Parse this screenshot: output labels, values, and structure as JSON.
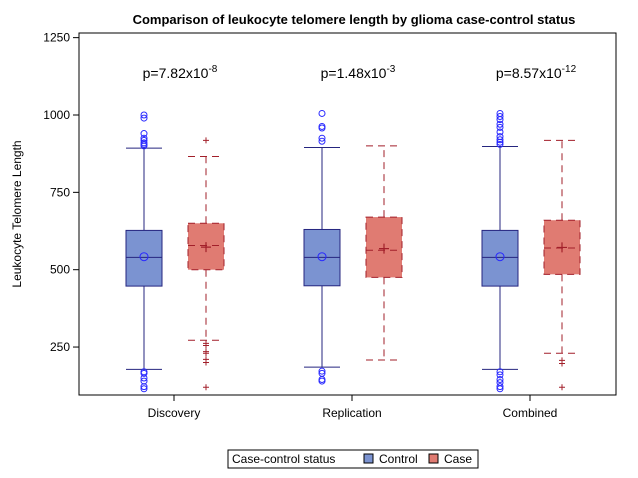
{
  "chart_data": {
    "type": "boxplot",
    "title": "Comparison of leukocyte telomere length by glioma case-control status",
    "xlabel": "",
    "ylabel": "Leukocyte Telomere Length",
    "ylim": [
      95,
      1265
    ],
    "yticks": [
      250,
      500,
      750,
      1000,
      1250
    ],
    "categories": [
      "Discovery",
      "Replication",
      "Combined"
    ],
    "pvalues": [
      {
        "base": "p=7.82x10",
        "exp": "-8"
      },
      {
        "base": "p=1.48x10",
        "exp": "-3"
      },
      {
        "base": "p=8.57x10",
        "exp": "-12"
      }
    ],
    "series": [
      {
        "name": "Control",
        "fill": "#7b93d1",
        "stroke": "#25257f",
        "outlierStroke": "#2929ff",
        "dashed": false,
        "outlierMarker": "circle",
        "boxes": [
          {
            "q1": 447,
            "median": 540,
            "q3": 627,
            "mean": 542,
            "whiskerLow": 178,
            "whiskerHigh": 893,
            "outliers": [
              115,
              122,
              140,
              150,
              165,
              170,
              900,
              905,
              910,
              918,
              925,
              940,
              990,
              1000
            ]
          },
          {
            "q1": 448,
            "median": 540,
            "q3": 630,
            "mean": 542,
            "whiskerLow": 185,
            "whiskerHigh": 895,
            "outliers": [
              140,
              145,
              165,
              172,
              915,
              925,
              958,
              963,
              1005
            ]
          },
          {
            "q1": 447,
            "median": 540,
            "q3": 627,
            "mean": 542,
            "whiskerLow": 178,
            "whiskerHigh": 898,
            "outliers": [
              115,
              122,
              135,
              145,
              160,
              170,
              905,
              912,
              920,
              930,
              945,
              960,
              970,
              985,
              995,
              1005
            ]
          }
        ]
      },
      {
        "name": "Case",
        "fill": "#e07b72",
        "stroke": "#a21f2a",
        "outlierStroke": "#a21f2a",
        "dashed": true,
        "outlierMarker": "plus",
        "boxes": [
          {
            "q1": 500,
            "median": 578,
            "q3": 650,
            "mean": 573,
            "whiskerLow": 272,
            "whiskerHigh": 866,
            "outliers": [
              120,
              200,
              210,
              230,
              235,
              255,
              262,
              918
            ]
          },
          {
            "q1": 475,
            "median": 563,
            "q3": 670,
            "mean": 568,
            "whiskerLow": 208,
            "whiskerHigh": 900,
            "outliers": []
          },
          {
            "q1": 485,
            "median": 570,
            "q3": 660,
            "mean": 572,
            "whiskerLow": 230,
            "whiskerHigh": 918,
            "outliers": [
              120,
              197,
              207
            ]
          }
        ]
      }
    ],
    "legend": {
      "title": "Case-control status",
      "position": "bottom-center"
    }
  }
}
